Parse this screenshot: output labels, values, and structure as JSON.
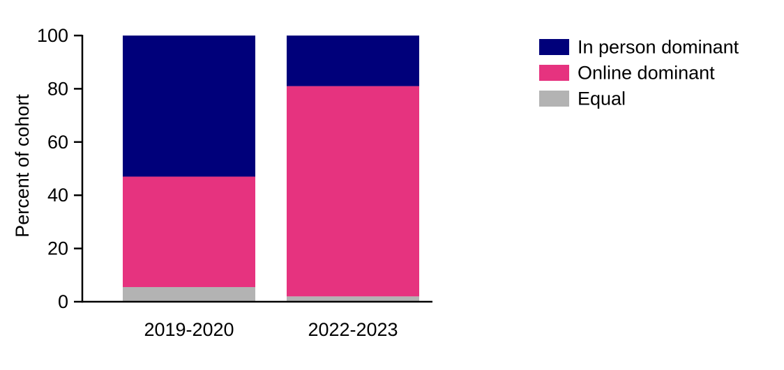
{
  "chart_data": {
    "type": "bar",
    "stacked": true,
    "categories": [
      "2019-2020",
      "2022-2023"
    ],
    "series": [
      {
        "name": "Equal",
        "color": "#B3B3B3",
        "values": [
          5.5,
          2
        ]
      },
      {
        "name": "Online dominant",
        "color": "#E6337F",
        "values": [
          41.5,
          79
        ]
      },
      {
        "name": "In person dominant",
        "color": "#00007A",
        "values": [
          53,
          19
        ]
      }
    ],
    "legend_order": [
      "In person dominant",
      "Online dominant",
      "Equal"
    ],
    "ylabel": "Percent of cohort",
    "xlabel": "",
    "title": "",
    "ylim": [
      0,
      100
    ],
    "yticks": [
      0,
      20,
      40,
      60,
      80,
      100
    ],
    "grid": false,
    "legend_position": "top-right"
  }
}
